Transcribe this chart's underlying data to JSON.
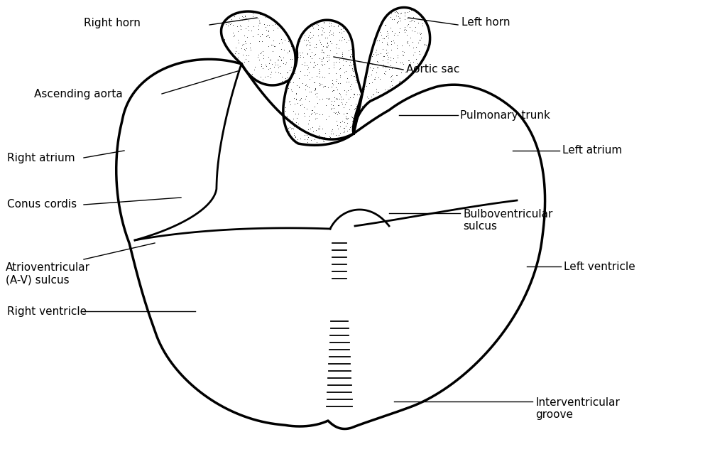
{
  "background_color": "#ffffff",
  "line_color": "#000000",
  "labels": {
    "right_horn": "Right horn",
    "left_horn": "Left horn",
    "aortic_sac": "Aortic sac",
    "ascending_aorta": "Ascending aorta",
    "pulmonary_trunk": "Pulmonary trunk",
    "right_atrium": "Right atrium",
    "left_atrium": "Left atrium",
    "conus_cordis": "Conus cordis",
    "bulboventricular_sulcus": "Bulboventricular\nsulcus",
    "atrioventricular_sulcus": "Atrioventricular\n(A-V) sulcus",
    "right_ventricle": "Right ventricle",
    "left_ventricle": "Left ventricle",
    "interventricular_groove": "Interventricular\ngroove"
  },
  "font_size": 11
}
